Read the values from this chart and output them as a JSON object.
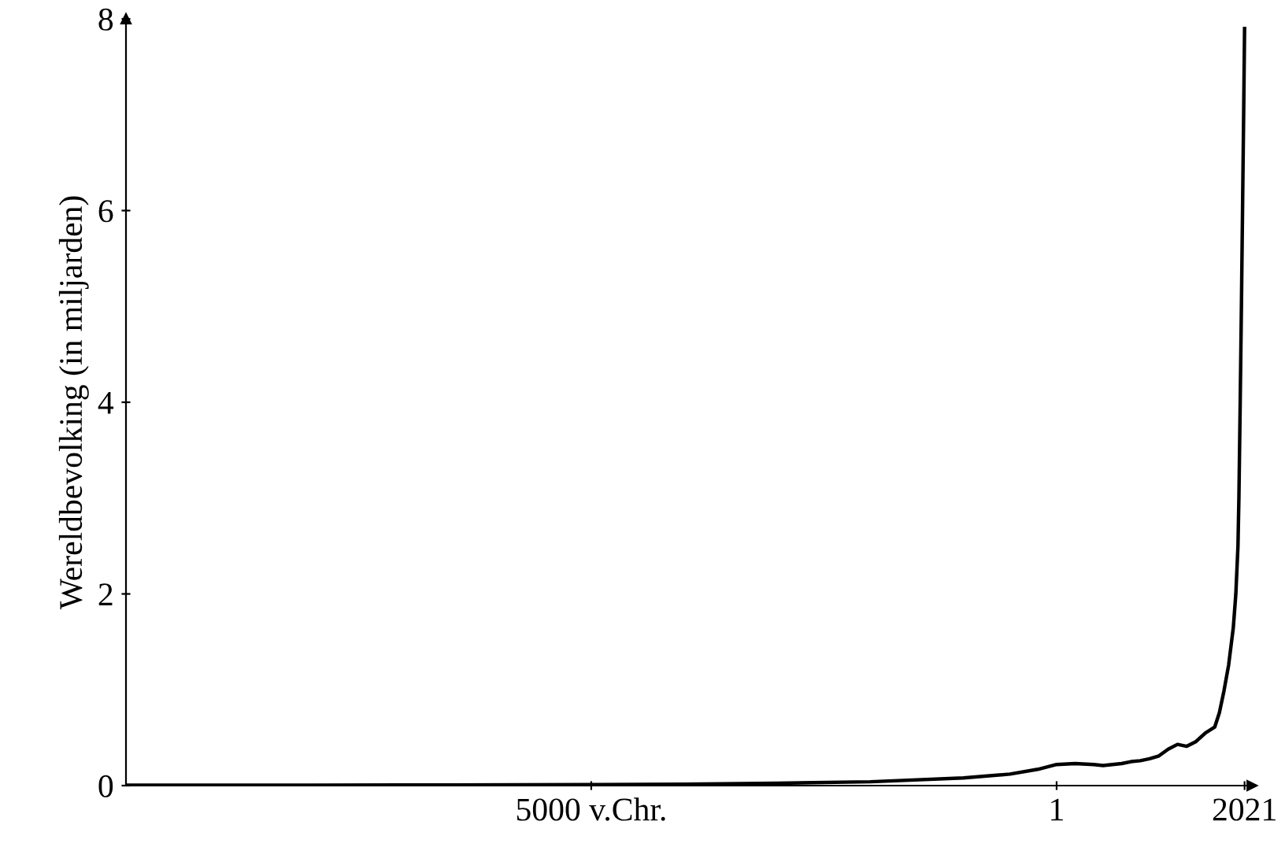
{
  "chart_data": {
    "type": "line",
    "ylabel": "Wereldbevolking (in miljarden)",
    "x": [
      -10000,
      -8000,
      -6500,
      -5000,
      -4000,
      -3000,
      -2000,
      -1000,
      -500,
      -200,
      1,
      200,
      400,
      500,
      600,
      700,
      800,
      900,
      1000,
      1100,
      1200,
      1300,
      1400,
      1500,
      1600,
      1700,
      1750,
      1800,
      1850,
      1900,
      1927,
      1950,
      1960,
      1974,
      1987,
      1999,
      2011,
      2021
    ],
    "series": [
      {
        "color": "#000000",
        "values": [
          0.004,
          0.005,
          0.006,
          0.01,
          0.015,
          0.025,
          0.04,
          0.08,
          0.12,
          0.17,
          0.22,
          0.23,
          0.22,
          0.21,
          0.22,
          0.23,
          0.25,
          0.26,
          0.28,
          0.31,
          0.38,
          0.43,
          0.41,
          0.46,
          0.55,
          0.61,
          0.76,
          0.99,
          1.26,
          1.65,
          2.0,
          2.5,
          3.0,
          4.0,
          5.0,
          6.0,
          7.0,
          7.9
        ]
      }
    ],
    "xlim": [
      -10000,
      2100
    ],
    "ylim": [
      0,
      8
    ],
    "xticks": [
      {
        "value": -5000,
        "label": "5000 v.Chr."
      },
      1,
      2021
    ],
    "yticks": [
      0,
      2,
      4,
      6,
      8
    ],
    "grid": false,
    "legend": false,
    "marker": "none",
    "line_style": "solid"
  }
}
